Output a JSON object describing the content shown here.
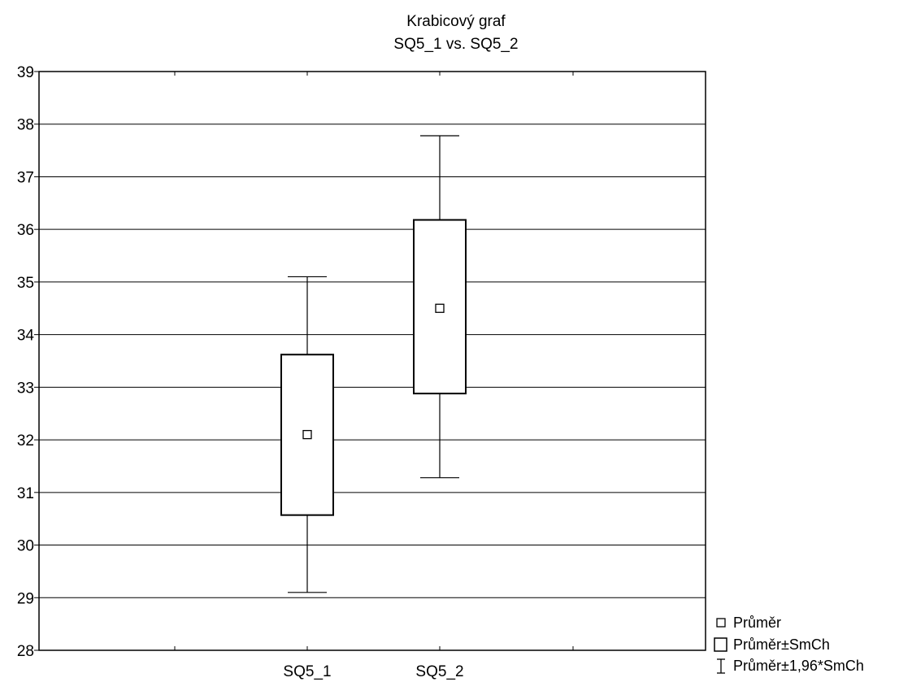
{
  "chart_data": {
    "type": "box",
    "title": "Krabicový graf",
    "subtitle": "SQ5_1 vs. SQ5_2",
    "categories": [
      "SQ5_1",
      "SQ5_2"
    ],
    "series": [
      {
        "name": "Průměr",
        "values": [
          32.1,
          34.5
        ]
      },
      {
        "name": "Průměr±SmCh",
        "low": [
          30.57,
          32.88
        ],
        "high": [
          33.62,
          36.18
        ]
      },
      {
        "name": "Průměr±1,96*SmCh",
        "low": [
          29.1,
          31.28
        ],
        "high": [
          35.1,
          37.78
        ]
      }
    ],
    "ylim": [
      28,
      39
    ],
    "yticks": [
      28,
      29,
      30,
      31,
      32,
      33,
      34,
      35,
      36,
      37,
      38,
      39
    ],
    "grid": true,
    "legend_position": "bottom-right"
  }
}
